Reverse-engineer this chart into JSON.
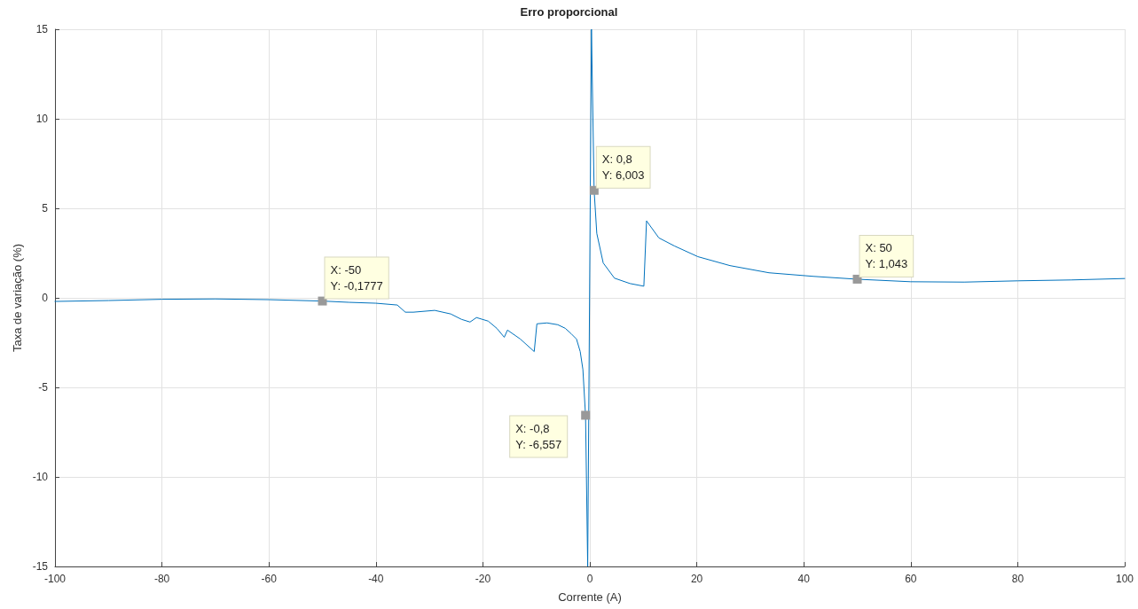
{
  "chart_data": {
    "type": "line",
    "title": "Erro proporcional",
    "xlabel": "Corrente (A)",
    "ylabel": "Taxa de variação (%)",
    "x": [
      -100,
      -90,
      -80,
      -70,
      -60,
      -50,
      -45,
      -40,
      -36,
      -34.5,
      -33,
      -29,
      -26,
      -24,
      -22.4,
      -21.2,
      -19,
      -17.4,
      -16,
      -15.4,
      -13,
      -10.4,
      -9.9,
      -8,
      -6,
      -4.6,
      -3.5,
      -2.5,
      -1.8,
      -1.3,
      -0.8,
      -0.4,
      0.3,
      0.8,
      1.3,
      2.5,
      4.6,
      7.5,
      10.1,
      10.6,
      12.9,
      15.8,
      20.2,
      26.2,
      33.5,
      41.8,
      50,
      60,
      70,
      80,
      90,
      100
    ],
    "series": [
      {
        "color": "#0072bd",
        "values": [
          -0.2,
          -0.15,
          -0.08,
          -0.06,
          -0.1,
          -0.18,
          -0.25,
          -0.3,
          -0.4,
          -0.8,
          -0.8,
          -0.7,
          -0.9,
          -1.2,
          -1.35,
          -1.1,
          -1.3,
          -1.7,
          -2.2,
          -1.8,
          -2.3,
          -3.0,
          -1.45,
          -1.4,
          -1.5,
          -1.7,
          -2.0,
          -2.3,
          -3.0,
          -4.0,
          -6.6,
          -15,
          15,
          6.0,
          3.6,
          1.95,
          1.1,
          0.8,
          0.65,
          4.3,
          3.35,
          2.9,
          2.3,
          1.8,
          1.4,
          1.2,
          1.04,
          0.9,
          0.88,
          0.95,
          1.0,
          1.08
        ]
      }
    ],
    "xlim": [
      -100,
      100
    ],
    "xticks": [
      -100,
      -80,
      -60,
      -40,
      -20,
      0,
      20,
      40,
      60,
      80,
      100
    ],
    "ylim": [
      -15,
      15
    ],
    "yticks": [
      -15,
      -10,
      -5,
      0,
      5,
      10,
      15
    ],
    "grid": true,
    "marker": "none",
    "line_style": "solid",
    "annotations": [
      {
        "text": "X: -50\nY: -0,1777",
        "x": -50,
        "y": -0.1777
      },
      {
        "text": "X: 0,8\nY: 6,003",
        "x": 0.8,
        "y": 6.003
      },
      {
        "text": "X: -0,8\nY: -6,557",
        "x": -0.8,
        "y": -6.557
      },
      {
        "text": "X: 50\nY: 1,043",
        "x": 50,
        "y": 1.043
      }
    ]
  }
}
